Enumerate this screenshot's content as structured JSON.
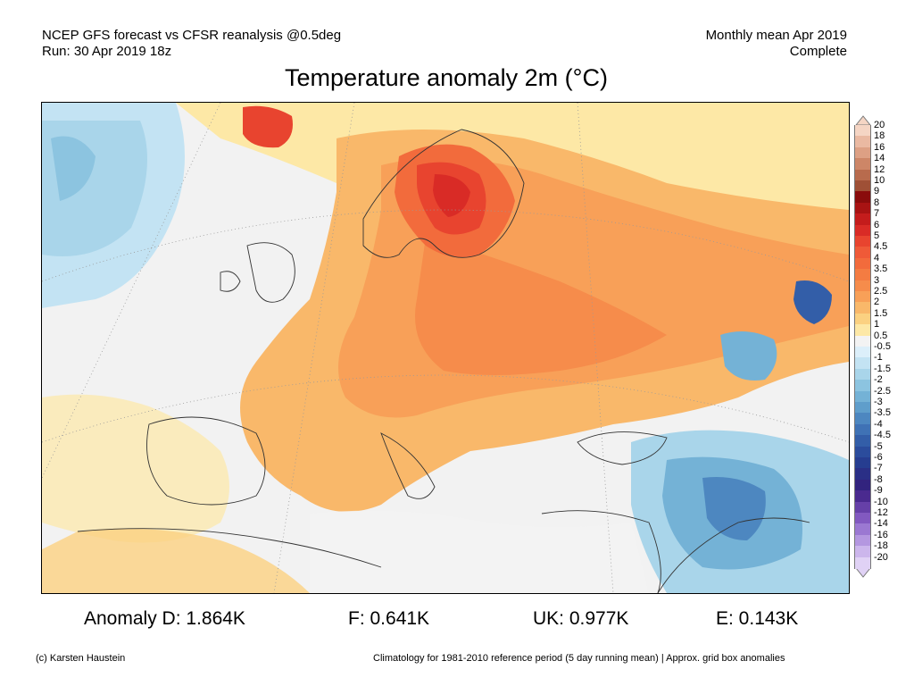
{
  "header": {
    "line1_left": "NCEP GFS forecast vs CFSR reanalysis @0.5deg",
    "line2_left": "Run: 30 Apr 2019 18z",
    "line1_right": "Monthly mean Apr 2019",
    "line2_right": "Complete"
  },
  "title": "Temperature anomaly 2m (°C)",
  "colorbar": {
    "levels": [
      {
        "label": "20",
        "color": "#f5d5c4"
      },
      {
        "label": "18",
        "color": "#eab9a2"
      },
      {
        "label": "16",
        "color": "#dda084"
      },
      {
        "label": "14",
        "color": "#cd8667"
      },
      {
        "label": "12",
        "color": "#b86b4d"
      },
      {
        "label": "10",
        "color": "#9f5036"
      },
      {
        "label": "9",
        "color": "#8a0c0c"
      },
      {
        "label": "8",
        "color": "#a81313"
      },
      {
        "label": "7",
        "color": "#c41c1c"
      },
      {
        "label": "6",
        "color": "#d92b26"
      },
      {
        "label": "5",
        "color": "#e8442f"
      },
      {
        "label": "4.5",
        "color": "#ef5a38"
      },
      {
        "label": "4",
        "color": "#f26b3c"
      },
      {
        "label": "3.5",
        "color": "#f47c42"
      },
      {
        "label": "3",
        "color": "#f68c4b"
      },
      {
        "label": "2.5",
        "color": "#f8a058"
      },
      {
        "label": "2",
        "color": "#f9b86a"
      },
      {
        "label": "1.5",
        "color": "#fbd181"
      },
      {
        "label": "1",
        "color": "#fde8a6"
      },
      {
        "label": "0.5",
        "color": "#f3f3f3"
      },
      {
        "label": "-0.5",
        "color": "#dceffa"
      },
      {
        "label": "-1",
        "color": "#c3e3f3"
      },
      {
        "label": "-1.5",
        "color": "#a9d5ea"
      },
      {
        "label": "-2",
        "color": "#8cc4e0"
      },
      {
        "label": "-2.5",
        "color": "#74b2d6"
      },
      {
        "label": "-3",
        "color": "#5f9ecb"
      },
      {
        "label": "-3.5",
        "color": "#4d87c0"
      },
      {
        "label": "-4",
        "color": "#3f72b5"
      },
      {
        "label": "-4.5",
        "color": "#335ea8"
      },
      {
        "label": "-5",
        "color": "#2b4c9c"
      },
      {
        "label": "-6",
        "color": "#263d90"
      },
      {
        "label": "-7",
        "color": "#2a2f86"
      },
      {
        "label": "-8",
        "color": "#32237e"
      },
      {
        "label": "-9",
        "color": "#4a2a8f"
      },
      {
        "label": "-10",
        "color": "#6640a8"
      },
      {
        "label": "-12",
        "color": "#8259c0"
      },
      {
        "label": "-14",
        "color": "#9b78d2"
      },
      {
        "label": "-16",
        "color": "#b497e0"
      },
      {
        "label": "-18",
        "color": "#ccb6ec"
      },
      {
        "label": "-20",
        "color": "#e0d2f5"
      }
    ]
  },
  "stats": {
    "d": "Anomaly D: 1.864K",
    "f": "F: 0.641K",
    "uk": "UK: 0.977K",
    "e": "E: 0.143K"
  },
  "footer": {
    "copyright": "(c) Karsten Haustein",
    "note": "Climatology for 1981-2010 reference period (5 day running mean) | Approx. grid box anomalies"
  }
}
